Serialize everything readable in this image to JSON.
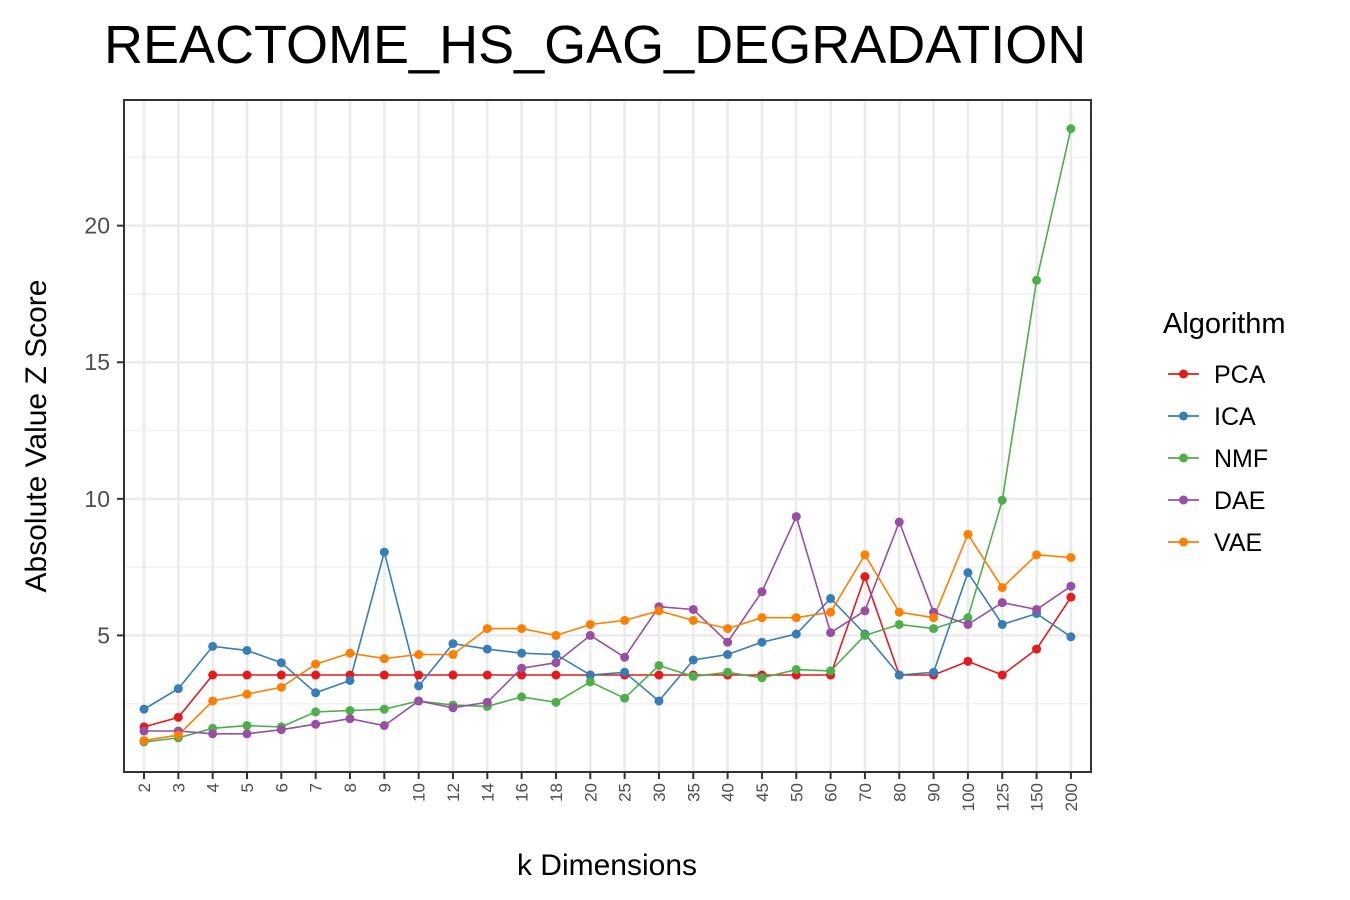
{
  "chart_data": {
    "type": "line",
    "title": "REACTOME_HS_GAG_DEGRADATION",
    "xlabel": "k Dimensions",
    "ylabel": "Absolute Value Z Score",
    "categories": [
      "2",
      "3",
      "4",
      "5",
      "6",
      "7",
      "8",
      "9",
      "10",
      "12",
      "14",
      "16",
      "18",
      "20",
      "25",
      "30",
      "35",
      "40",
      "45",
      "50",
      "60",
      "70",
      "80",
      "90",
      "100",
      "125",
      "150",
      "200"
    ],
    "yticks": [
      5,
      10,
      15,
      20
    ],
    "ylim": [
      0.0,
      24.6
    ],
    "grid": true,
    "legend": {
      "title": "Algorithm",
      "position": "right"
    },
    "series": [
      {
        "name": "PCA",
        "color": "#e41a1c",
        "values": [
          1.65,
          2.0,
          3.55,
          3.55,
          3.55,
          3.55,
          3.55,
          3.55,
          3.55,
          3.55,
          3.55,
          3.55,
          3.55,
          3.55,
          3.55,
          3.55,
          3.55,
          3.55,
          3.55,
          3.55,
          3.55,
          7.15,
          3.55,
          3.55,
          4.05,
          3.55,
          4.5,
          6.4
        ]
      },
      {
        "name": "ICA",
        "color": "#377eb8",
        "values": [
          2.3,
          3.05,
          4.6,
          4.45,
          4.0,
          2.9,
          3.35,
          8.05,
          3.15,
          4.7,
          4.5,
          4.35,
          4.3,
          3.55,
          3.65,
          2.6,
          4.1,
          4.3,
          4.75,
          5.05,
          6.35,
          5.05,
          3.55,
          3.65,
          7.3,
          5.4,
          5.8,
          4.95
        ]
      },
      {
        "name": "NMF",
        "color": "#4daf4a",
        "values": [
          1.1,
          1.25,
          1.6,
          1.7,
          1.65,
          2.2,
          2.25,
          2.3,
          2.6,
          2.45,
          2.4,
          2.75,
          2.55,
          3.3,
          2.7,
          3.9,
          3.5,
          3.65,
          3.45,
          3.75,
          3.7,
          5.0,
          5.4,
          5.25,
          5.65,
          9.95,
          18.0,
          23.55
        ]
      },
      {
        "name": "DAE",
        "color": "#984ea3",
        "values": [
          1.5,
          1.5,
          1.4,
          1.4,
          1.55,
          1.75,
          1.95,
          1.7,
          2.6,
          2.35,
          2.55,
          3.8,
          4.0,
          5.0,
          4.2,
          6.05,
          5.95,
          4.75,
          6.6,
          9.35,
          5.1,
          5.9,
          9.15,
          5.85,
          5.4,
          6.2,
          5.95,
          6.8
        ]
      },
      {
        "name": "VAE",
        "color": "#ff7f00",
        "values": [
          1.15,
          1.35,
          2.6,
          2.85,
          3.1,
          3.95,
          4.35,
          4.15,
          4.3,
          4.3,
          5.25,
          5.25,
          5.0,
          5.4,
          5.55,
          5.9,
          5.55,
          5.25,
          5.65,
          5.65,
          5.85,
          7.95,
          5.85,
          5.65,
          8.7,
          6.75,
          7.95,
          7.85
        ]
      }
    ]
  }
}
